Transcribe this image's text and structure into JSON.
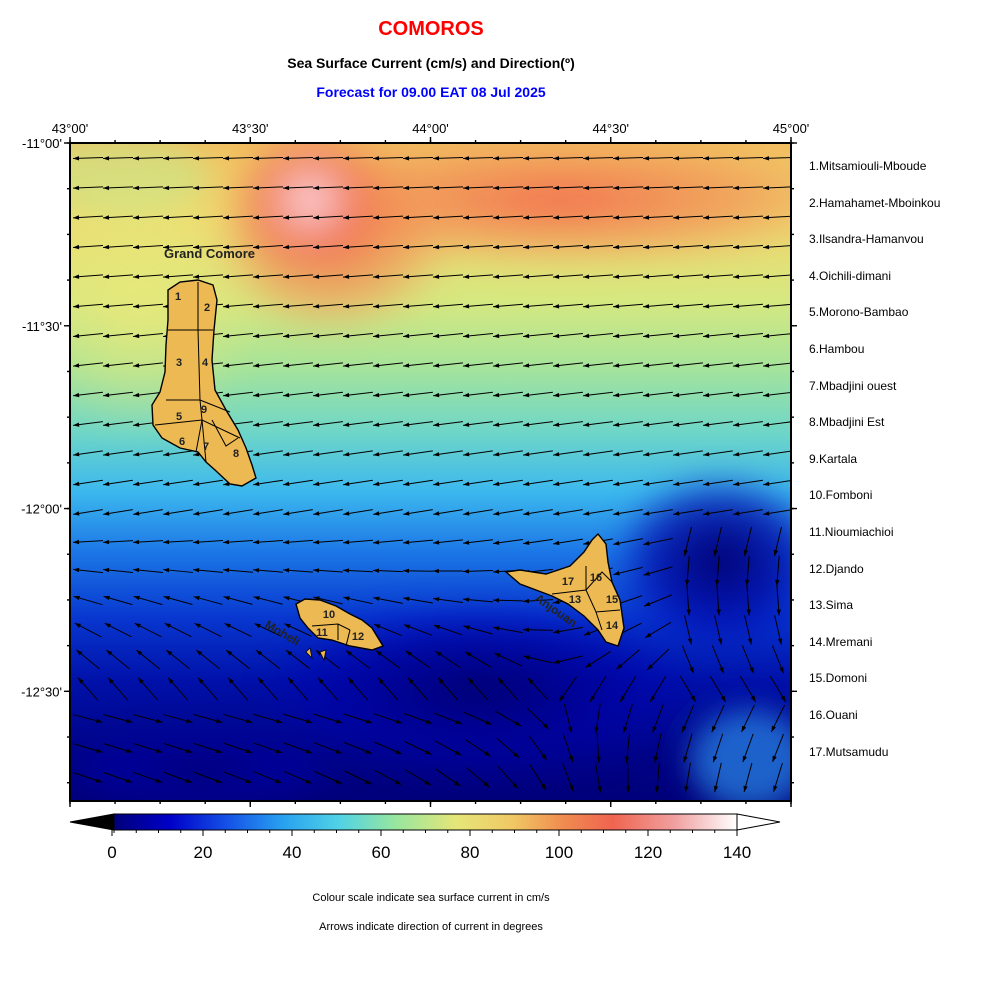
{
  "header": {
    "title": "COMOROS",
    "subtitle": "Sea Surface Current (cm/s) and Direction(º)",
    "forecast": "Forecast for  09.00 EAT 08 Jul 2025"
  },
  "axes": {
    "lon_ticks": [
      {
        "label": "43°00'",
        "value": 43.0
      },
      {
        "label": "43°30'",
        "value": 43.5
      },
      {
        "label": "44°00'",
        "value": 44.0
      },
      {
        "label": "44°30'",
        "value": 44.5
      },
      {
        "label": "45°00'",
        "value": 45.0
      }
    ],
    "lat_ticks": [
      {
        "label": "-11°00'",
        "value": -11.0
      },
      {
        "label": "-11°30'",
        "value": -11.5
      },
      {
        "label": "-12°00'",
        "value": -12.0
      },
      {
        "label": "-12°30'",
        "value": -12.5
      }
    ],
    "lon_range": [
      43.0,
      45.0
    ],
    "lat_range": [
      -11.0,
      -12.8
    ]
  },
  "islands": [
    {
      "name": "Grand Comore"
    },
    {
      "name": "Moheli"
    },
    {
      "name": "Anjouan"
    }
  ],
  "district_numbers": [
    "1",
    "2",
    "3",
    "4",
    "5",
    "6",
    "7",
    "8",
    "9",
    "10",
    "11",
    "12",
    "13",
    "14",
    "15",
    "16",
    "17"
  ],
  "legend": [
    "1.Mitsamiouli-Mboude",
    "2.Hamahamet-Mboinkou",
    "3.Ilsandra-Hamanvou",
    "4.Oichili-dimani",
    "5.Morono-Bambao",
    "6.Hambou",
    "7.Mbadjini ouest",
    "8.Mbadjini Est",
    "9.Kartala",
    "10.Fomboni",
    "11.Nioumiachioi",
    "12.Djando",
    "13.Sima",
    "14.Mremani",
    "15.Domoni",
    "16.Ouani",
    "17.Mutsamudu"
  ],
  "colorbar": {
    "ticks": [
      "0",
      "20",
      "40",
      "60",
      "80",
      "100",
      "120",
      "140"
    ],
    "min": 0,
    "max": 140,
    "colors": [
      "#00007a",
      "#0000c8",
      "#1450e6",
      "#28a0f0",
      "#50d2e6",
      "#96e6a0",
      "#e6e678",
      "#f0c864",
      "#f08c50",
      "#f06450",
      "#f0a0a0",
      "#ffffff"
    ]
  },
  "notes": {
    "line1": "Colour scale indicate sea surface current in cm/s",
    "line2": "Arrows indicate direction of current in degrees"
  }
}
